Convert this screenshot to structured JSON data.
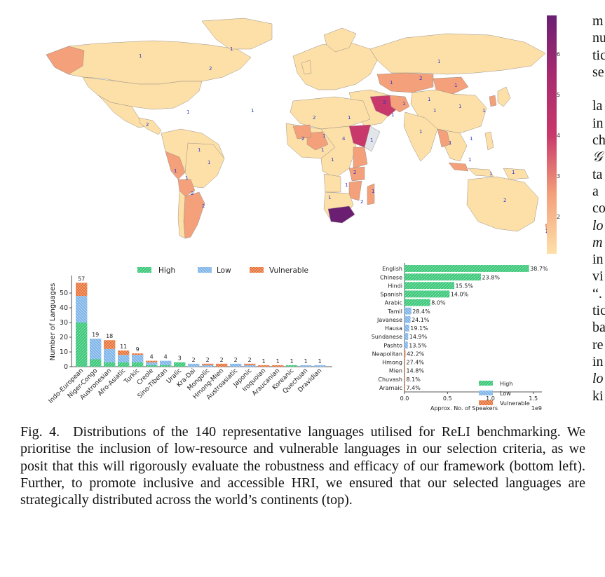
{
  "map": {
    "colorbar_ticks": [
      "6",
      "5",
      "4",
      "3",
      "2"
    ],
    "colors": {
      "low": "#fde0a8",
      "mid": "#f4a07a",
      "high": "#c8386a",
      "max": "#6b1f73",
      "water": "#ffffff",
      "border": "#8a8a8a"
    },
    "region_labels": [
      "1",
      "1",
      "2",
      "1",
      "1",
      "2",
      "1",
      "1",
      "2",
      "1",
      "2",
      "1",
      "2",
      "2",
      "1",
      "1",
      "1",
      "3",
      "4",
      "1",
      "2",
      "1",
      "1",
      "1",
      "2",
      "1",
      "1",
      "2",
      "1",
      "1",
      "1",
      "1",
      "1",
      "1",
      "1",
      "1",
      "1",
      "2",
      "2",
      "1",
      "1",
      "1",
      "1",
      "1"
    ]
  },
  "bar_chart": {
    "ylabel": "Number of Languages",
    "yticks": [
      "0",
      "10",
      "20",
      "30",
      "40",
      "50"
    ],
    "legend": [
      "High",
      "Low",
      "Vulnerable"
    ]
  },
  "hbar_chart": {
    "xlabel": "Approx. No. of Speakers",
    "exponent": "1e9",
    "xticks": [
      "0.0",
      "0.5",
      "1.0",
      "1.5"
    ],
    "legend": [
      "High",
      "Low",
      "Vulnerable"
    ]
  },
  "chart_data": [
    {
      "type": "bar",
      "ylabel": "Number of Languages",
      "ylim": [
        0,
        60
      ],
      "categories": [
        "Indo-European",
        "Niger-Congo",
        "Austronesian",
        "Afro-Asiatic",
        "Turkic",
        "Creole",
        "Sino-Tibetan",
        "Uralic",
        "Kra-Dai",
        "Mongolic",
        "Hmong-Mien",
        "Austroasiatic",
        "Japonic",
        "Iroquoian",
        "Araucanian",
        "Koreanic",
        "Quechuan",
        "Dravidian"
      ],
      "totals": [
        57,
        19,
        18,
        11,
        9,
        4,
        4,
        3,
        2,
        2,
        2,
        2,
        2,
        1,
        1,
        1,
        1,
        1
      ],
      "series": [
        {
          "name": "High",
          "values": [
            30,
            5,
            3,
            3,
            3,
            1,
            1,
            3,
            0,
            0,
            0,
            0,
            0,
            0,
            0,
            1,
            0,
            0
          ]
        },
        {
          "name": "Low",
          "values": [
            18,
            14,
            9,
            5,
            5,
            2,
            3,
            0,
            2,
            1,
            0,
            2,
            1,
            0,
            0,
            0,
            1,
            1
          ]
        },
        {
          "name": "Vulnerable",
          "values": [
            9,
            0,
            6,
            3,
            1,
            1,
            0,
            0,
            0,
            1,
            2,
            0,
            1,
            1,
            1,
            0,
            0,
            0
          ]
        }
      ],
      "legend_position": "top"
    },
    {
      "type": "bar",
      "orientation": "horizontal",
      "xlabel": "Approx. No. of Speakers",
      "xlim": [
        0,
        1.6
      ],
      "categories": [
        "English",
        "Chinese",
        "Hindi",
        "Spanish",
        "Arabic",
        "Tamil",
        "Javanese",
        "Hausa",
        "Sundanese",
        "Pashto",
        "Neapolitan",
        "Hmong",
        "Mien",
        "Chuvash",
        "Aramaic"
      ],
      "values": [
        1.45,
        0.89,
        0.58,
        0.525,
        0.3,
        0.08,
        0.07,
        0.055,
        0.043,
        0.039,
        0.012,
        0.008,
        0.0045,
        0.0025,
        0.0008
      ],
      "labels": [
        "38.7%",
        "23.8%",
        "15.5%",
        "14.0%",
        "8.0%",
        "28.4%",
        "24.1%",
        "19.1%",
        "14.9%",
        "13.5%",
        "42.2%",
        "27.4%",
        "14.8%",
        "8.1%",
        "7.4%"
      ],
      "group": [
        "High",
        "High",
        "High",
        "High",
        "High",
        "Low",
        "Low",
        "Low",
        "Low",
        "Low",
        "Vulnerable",
        "Vulnerable",
        "Vulnerable",
        "Vulnerable",
        "Vulnerable"
      ],
      "legend_position": "bottom-right"
    }
  ],
  "caption": {
    "label": "Fig. 4.",
    "text": "Distributions of the 140 representative languages utilised for ReLI benchmarking. We prioritise the inclusion of low-resource and vulnerable languages in our selection criteria, as we posit that this will rigorously evaluate the robustness and efficacy of our framework (bottom left). Further, to promote inclusive and accessible HRI, we ensured that our selected languages are strategically distributed across the world’s continents (top)."
  },
  "right_column": [
    "m",
    "nu",
    "tic",
    "se",
    "",
    "la",
    "in",
    "ch",
    "𝒢",
    "ta",
    "a",
    "co",
    "lo",
    "m",
    "in",
    "vi",
    "“.",
    "tic",
    "ba",
    "re",
    "in",
    "lo",
    "ki"
  ]
}
